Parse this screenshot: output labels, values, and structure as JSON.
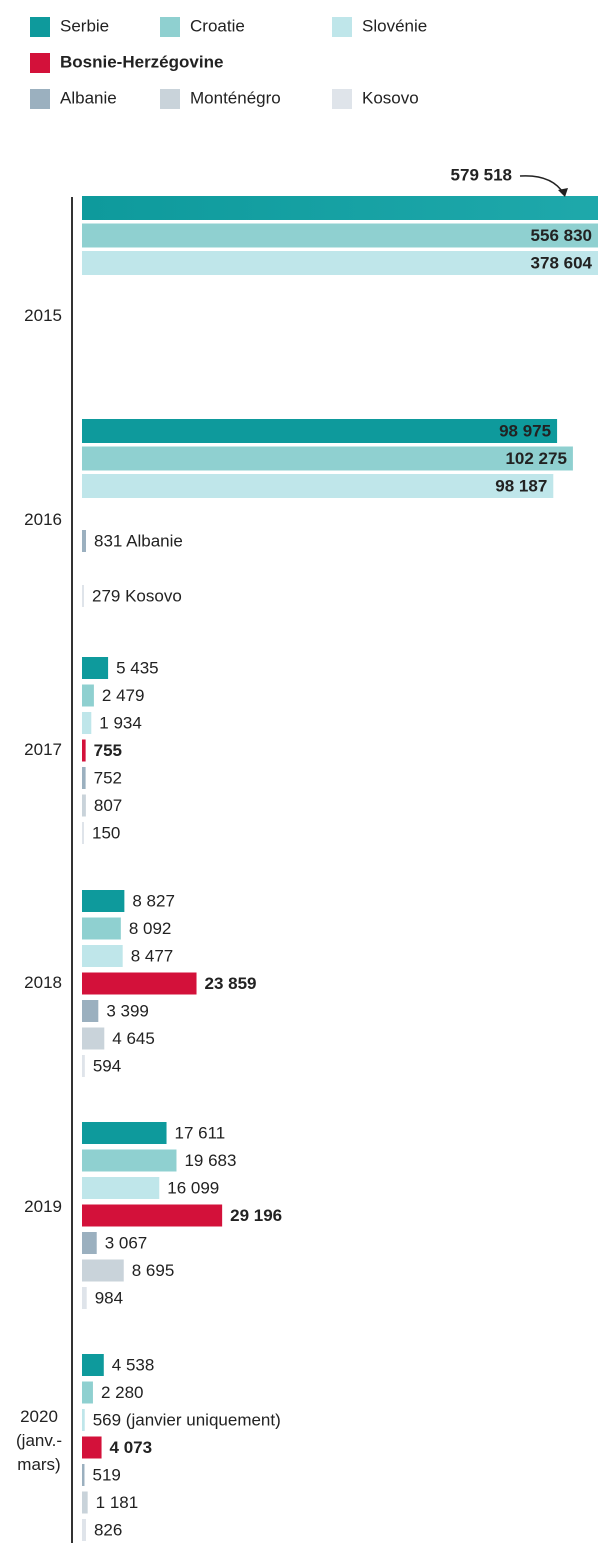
{
  "chart_data": {
    "type": "bar",
    "orientation": "horizontal",
    "categories": [
      "2015",
      "2016",
      "2017",
      "2018",
      "2019",
      "2020\n(janv.-\nmars)"
    ],
    "xlim": [
      0,
      107500
    ],
    "series": [
      {
        "name": "Serbie",
        "color": "#0e9a9c",
        "values": [
          579518,
          98975,
          5435,
          8827,
          17611,
          4538
        ],
        "value_labels": [
          "579 518",
          "98 975",
          "5 435",
          "8 827",
          "17 611",
          "4 538"
        ]
      },
      {
        "name": "Croatie",
        "color": "#8fd0d0",
        "values": [
          556830,
          102275,
          2479,
          8092,
          19683,
          2280
        ],
        "value_labels": [
          "556 830",
          "102 275",
          "2 479",
          "8 092",
          "19 683",
          "2 280"
        ]
      },
      {
        "name": "Slovénie",
        "color": "#bfe6ea",
        "values": [
          378604,
          98187,
          1934,
          8477,
          16099,
          569
        ],
        "value_labels": [
          "378 604",
          "98 187",
          "1 934",
          "8 477",
          "16 099",
          "569 (janvier uniquement)"
        ]
      },
      {
        "name": "Bosnie-Herzégovine",
        "color": "#d3113a",
        "emphasis": true,
        "values": [
          null,
          null,
          755,
          23859,
          29196,
          4073
        ],
        "value_labels": [
          null,
          null,
          "755",
          "23 859",
          "29 196",
          "4 073"
        ]
      },
      {
        "name": "Albanie",
        "color": "#9bb0bf",
        "values": [
          null,
          831,
          752,
          3399,
          3067,
          519
        ],
        "value_labels": [
          null,
          "831 Albanie",
          "752",
          "3 399",
          "3 067",
          "519"
        ]
      },
      {
        "name": "Monténégro",
        "color": "#c9d3da",
        "values": [
          null,
          null,
          807,
          4645,
          8695,
          1181
        ],
        "value_labels": [
          null,
          null,
          "807",
          "4 645",
          "8 695",
          "1 181"
        ]
      },
      {
        "name": "Kosovo",
        "color": "#dfe4ea",
        "values": [
          null,
          279,
          150,
          594,
          984,
          826
        ],
        "value_labels": [
          null,
          "279 Kosovo",
          "150",
          "594",
          "984",
          "826"
        ]
      }
    ]
  }
}
